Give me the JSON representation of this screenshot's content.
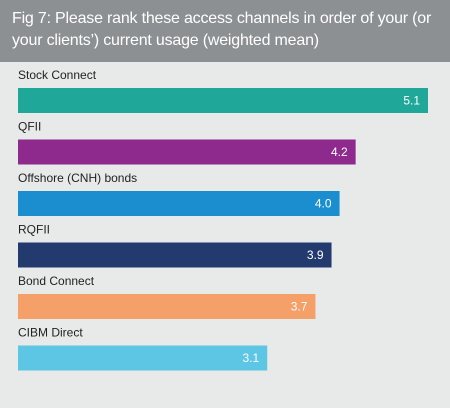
{
  "chart_data": {
    "type": "bar",
    "orientation": "horizontal",
    "title": "Fig 7: Please rank these access channels in order of your (or your clients’) current usage (weighted mean)",
    "categories": [
      "Stock Connect",
      "QFII",
      "Offshore (CNH) bonds",
      "RQFII",
      "Bond Connect",
      "CIBM Direct"
    ],
    "values": [
      5.1,
      4.2,
      4.0,
      3.9,
      3.7,
      3.1
    ],
    "value_labels": [
      "5.1",
      "4.2",
      "4.0",
      "3.9",
      "3.7",
      "3.1"
    ],
    "colors": [
      "#1fa89a",
      "#8e2a8e",
      "#1a8ecf",
      "#233a6f",
      "#f4a068",
      "#5cc6e4"
    ]
  }
}
